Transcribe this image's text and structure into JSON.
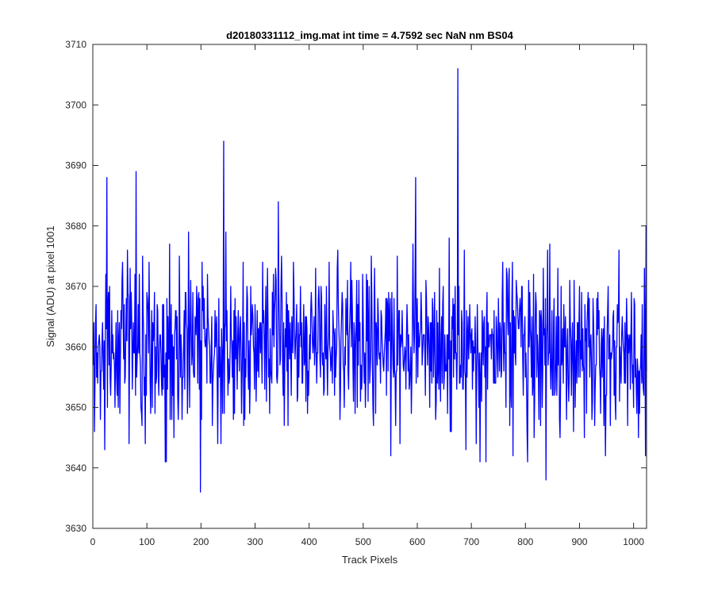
{
  "chart_data": {
    "type": "line",
    "title": "d20180331112_img.mat int time = 4.7592 sec  NaN nm BS04",
    "xlabel": "Track Pixels",
    "ylabel": "Signal (ADU) at pixel 1001",
    "xlim": [
      0,
      1024
    ],
    "ylim": [
      3630,
      3710
    ],
    "xticks": [
      0,
      100,
      200,
      300,
      400,
      500,
      600,
      700,
      800,
      900,
      1000
    ],
    "yticks": [
      3630,
      3640,
      3650,
      3660,
      3670,
      3680,
      3690,
      3700,
      3710
    ],
    "grid": false,
    "legend": "none",
    "series": [
      {
        "color": "#0000ff",
        "x_start": 1,
        "x_step": 1,
        "n_points": 1024,
        "mean": 3660,
        "noise_std": 7,
        "notable_points": [
          {
            "x": 26,
            "y": 3688
          },
          {
            "x": 80,
            "y": 3689
          },
          {
            "x": 97,
            "y": 3644
          },
          {
            "x": 199,
            "y": 3636
          },
          {
            "x": 242,
            "y": 3694
          },
          {
            "x": 343,
            "y": 3684
          },
          {
            "x": 597,
            "y": 3688
          },
          {
            "x": 675,
            "y": 3706
          },
          {
            "x": 690,
            "y": 3643
          },
          {
            "x": 838,
            "y": 3638
          },
          {
            "x": 1000,
            "y": 3650
          },
          {
            "x": 1023,
            "y": 3680
          }
        ]
      }
    ]
  }
}
